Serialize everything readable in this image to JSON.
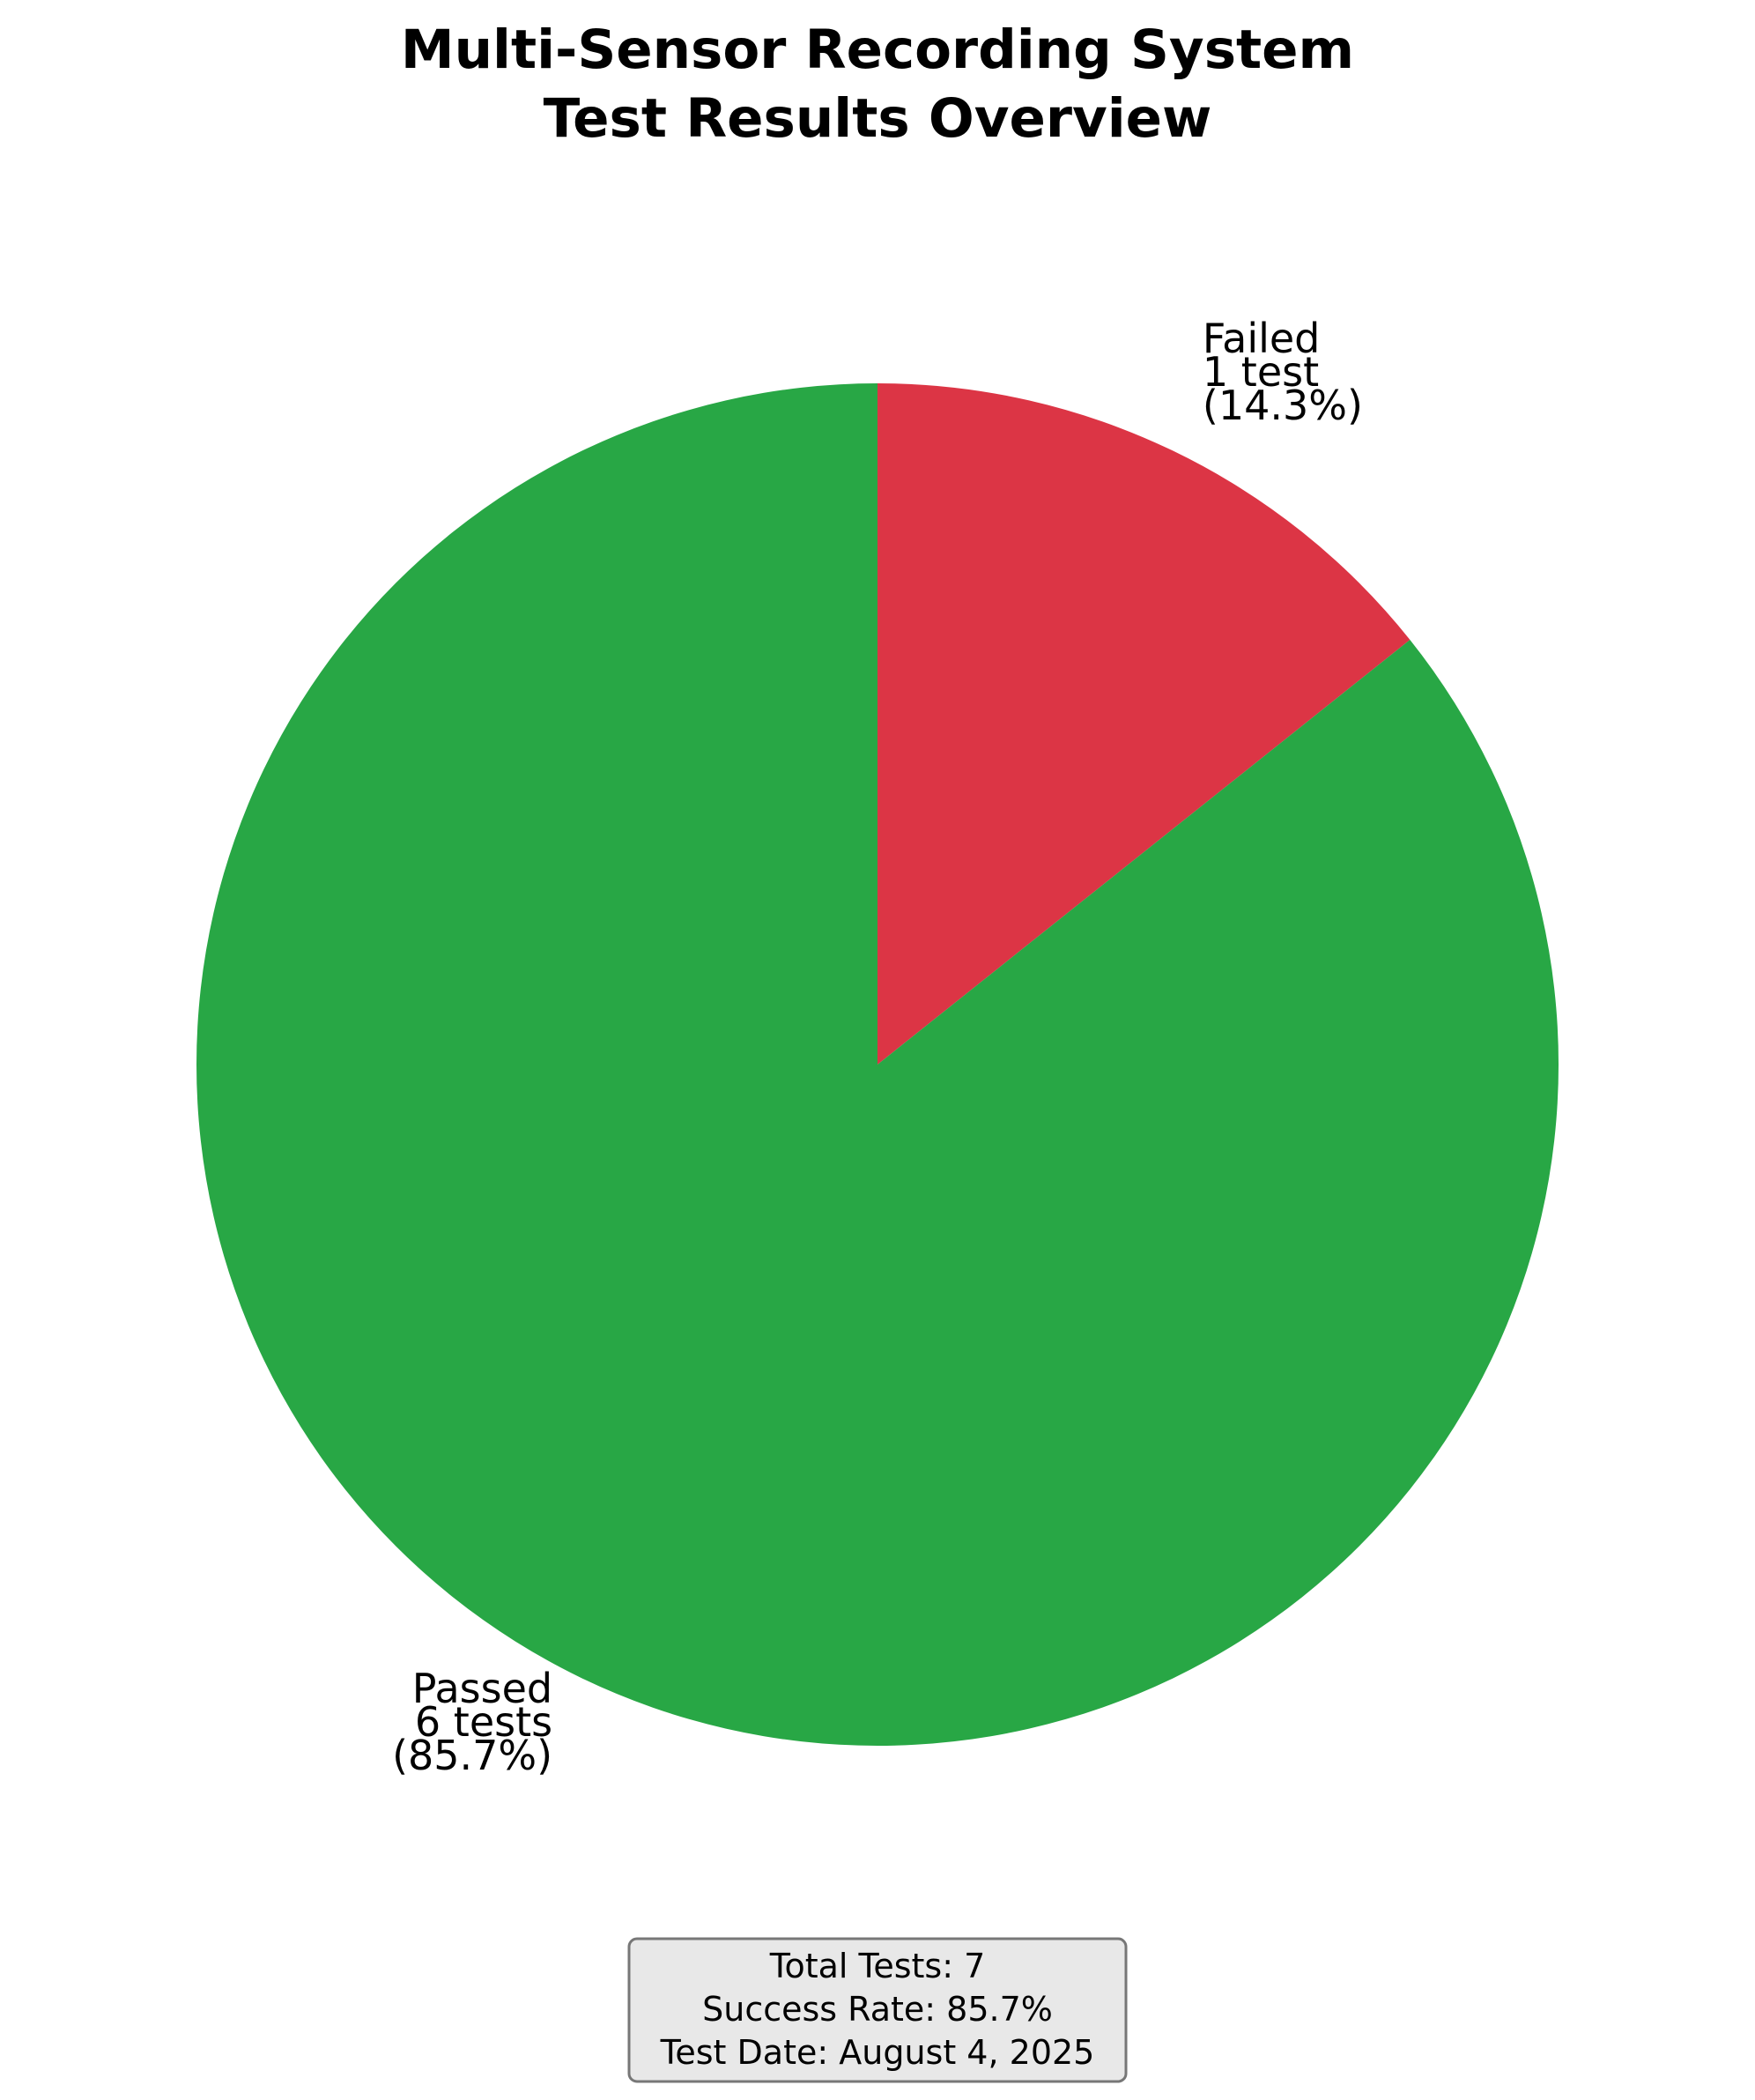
{
  "chart_data": {
    "type": "pie",
    "title": [
      "Multi-Sensor Recording System",
      "Test Results Overview"
    ],
    "start_angle_deg": 90,
    "direction": "clockwise",
    "slices": [
      {
        "name": "Failed",
        "value": 1,
        "percent": 14.3,
        "color": "#dc3545",
        "label_lines": [
          "Failed",
          "1 test",
          "(14.3%)"
        ]
      },
      {
        "name": "Passed",
        "value": 6,
        "percent": 85.7,
        "color": "#28a745",
        "label_lines": [
          "Passed",
          "6 tests",
          "(85.7%)"
        ]
      }
    ],
    "summary_box": {
      "lines": [
        "Total Tests: 7",
        "Success Rate: 85.7%",
        "Test Date: August 4, 2025"
      ],
      "background": "#e8e8e8",
      "border_color": "#777777"
    }
  }
}
